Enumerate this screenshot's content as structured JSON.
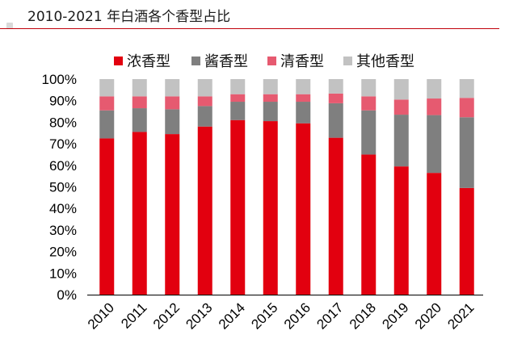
{
  "header": {
    "title": "2010-2021 年白酒各个香型占比"
  },
  "colors": {
    "accent": "#c0000b",
    "nong": "#e2000f",
    "jiang": "#7f7f7f",
    "qing": "#e65a70",
    "other": "#c2c2c2"
  },
  "chart_data": {
    "type": "bar",
    "stacked": true,
    "title": "2010-2021 年白酒各个香型占比",
    "xlabel": "",
    "ylabel": "",
    "ylim": [
      0,
      100
    ],
    "y_ticks": [
      "0%",
      "10%",
      "20%",
      "30%",
      "40%",
      "50%",
      "60%",
      "70%",
      "80%",
      "90%",
      "100%"
    ],
    "grid": false,
    "legend_position": "top",
    "categories": [
      "2010",
      "2011",
      "2012",
      "2013",
      "2014",
      "2015",
      "2016",
      "2017",
      "2018",
      "2019",
      "2020",
      "2021"
    ],
    "series": [
      {
        "name": "浓香型",
        "color": "#e2000f",
        "values": [
          72.5,
          75.5,
          74.5,
          78,
          81,
          80.5,
          79.5,
          72.8,
          65,
          59.5,
          56.5,
          49.5
        ]
      },
      {
        "name": "酱香型",
        "color": "#7f7f7f",
        "values": [
          13,
          11,
          11.5,
          9.5,
          8.5,
          9,
          10,
          16,
          20.5,
          24,
          26.8,
          32.8
        ]
      },
      {
        "name": "清香型",
        "color": "#e65a70",
        "values": [
          6.5,
          5.5,
          6,
          4.5,
          3.5,
          3.5,
          3.5,
          4.5,
          6.5,
          7,
          7.7,
          9
        ]
      },
      {
        "name": "其他香型",
        "color": "#c2c2c2",
        "values": [
          8,
          8,
          8,
          8,
          7,
          7,
          7,
          6.7,
          8,
          9.5,
          9,
          8.7
        ]
      }
    ]
  }
}
